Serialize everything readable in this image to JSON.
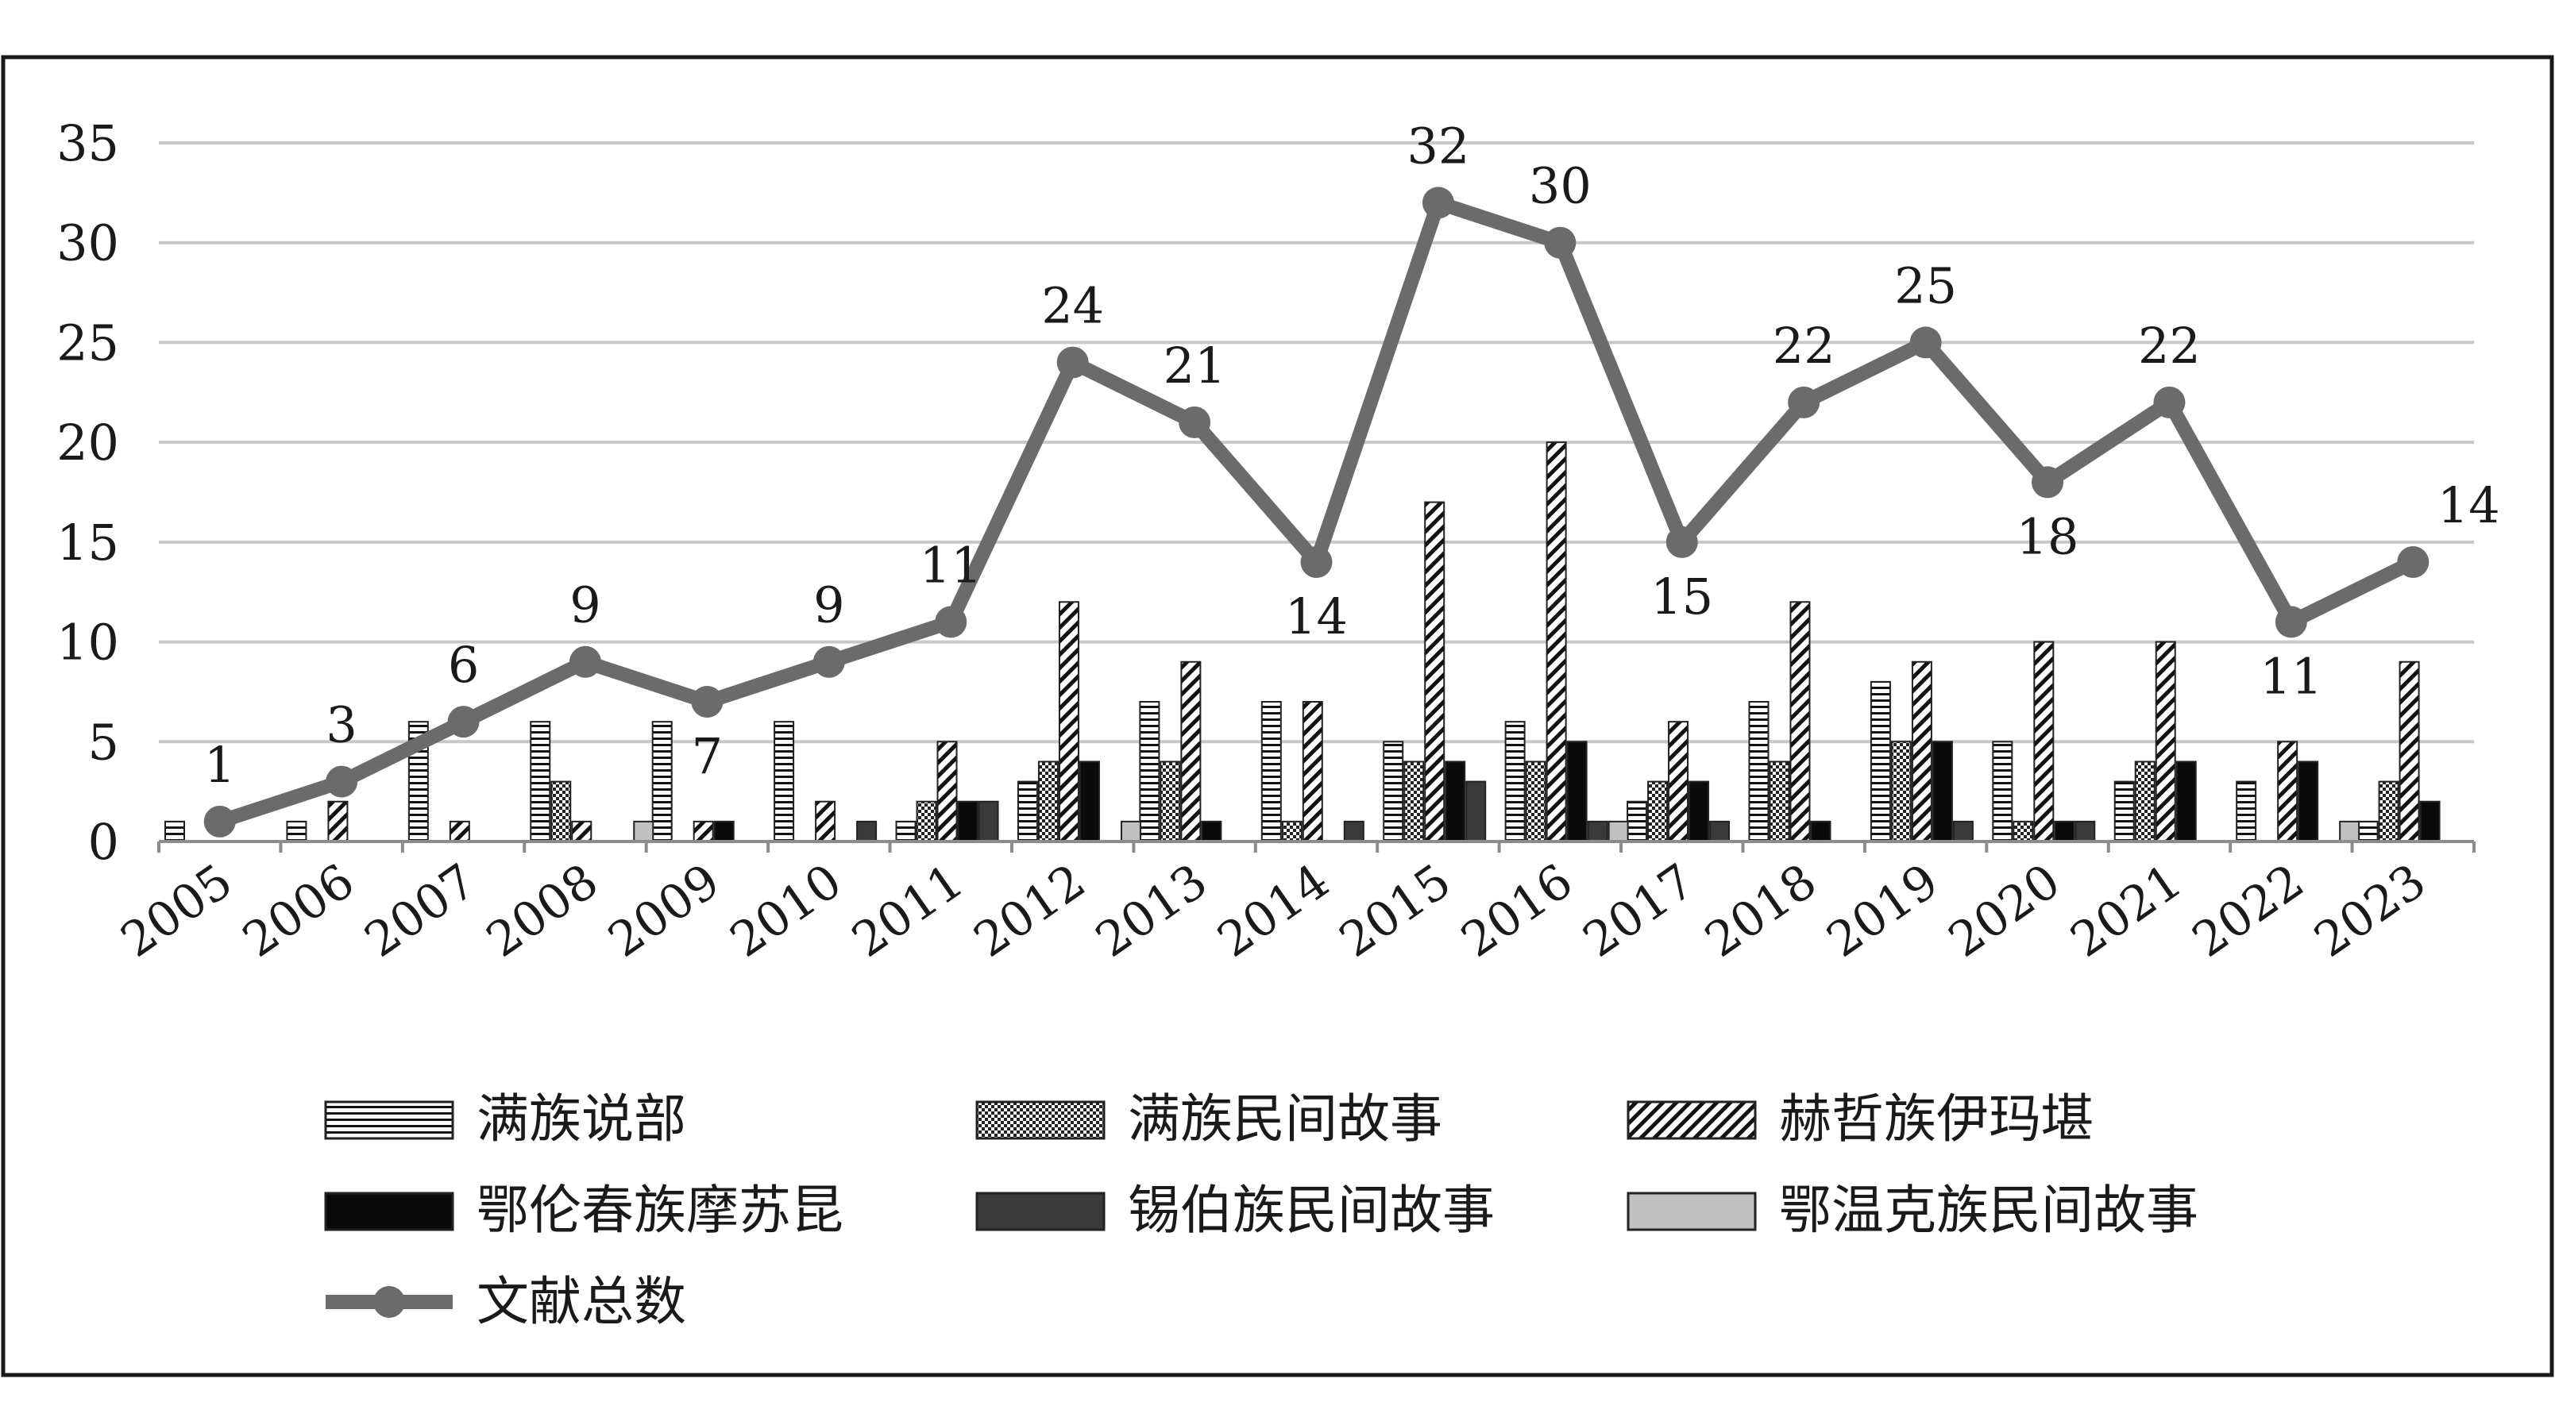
{
  "chart_data": {
    "type": "bar",
    "title": "",
    "xlabel": "",
    "ylabel": "",
    "ylim": [
      0,
      35
    ],
    "yticks": [
      0,
      5,
      10,
      15,
      20,
      25,
      30,
      35
    ],
    "grid": true,
    "legend_position": "bottom",
    "categories": [
      "2005",
      "2006",
      "2007",
      "2008",
      "2009",
      "2010",
      "2011",
      "2012",
      "2013",
      "2014",
      "2015",
      "2016",
      "2017",
      "2018",
      "2019",
      "2020",
      "2021",
      "2022",
      "2023"
    ],
    "series": [
      {
        "name": "满族说部",
        "type": "bar",
        "pattern": "horizontal-stripes",
        "values": [
          1,
          1,
          6,
          6,
          6,
          6,
          1,
          3,
          7,
          7,
          5,
          6,
          2,
          7,
          8,
          5,
          3,
          3,
          1
        ]
      },
      {
        "name": "满族民间故事",
        "type": "bar",
        "pattern": "checker",
        "values": [
          0,
          0,
          0,
          3,
          0,
          0,
          2,
          4,
          4,
          1,
          4,
          4,
          3,
          4,
          5,
          1,
          4,
          0,
          3
        ]
      },
      {
        "name": "赫哲族伊玛堪",
        "type": "bar",
        "pattern": "diagonal-stripes",
        "values": [
          0,
          2,
          1,
          1,
          1,
          2,
          5,
          12,
          9,
          7,
          17,
          20,
          6,
          12,
          9,
          10,
          10,
          5,
          9
        ]
      },
      {
        "name": "鄂伦春族摩苏昆",
        "type": "bar",
        "pattern": "black",
        "values": [
          0,
          0,
          0,
          0,
          1,
          0,
          2,
          4,
          1,
          0,
          4,
          5,
          3,
          1,
          5,
          1,
          4,
          4,
          2
        ]
      },
      {
        "name": "锡伯族民间故事",
        "type": "bar",
        "pattern": "dark-gray",
        "values": [
          0,
          0,
          0,
          0,
          0,
          1,
          2,
          0,
          0,
          1,
          3,
          1,
          1,
          0,
          1,
          1,
          0,
          0,
          0
        ]
      },
      {
        "name": "鄂温克族民间故事",
        "type": "bar",
        "pattern": "light-gray",
        "values": [
          0,
          0,
          0,
          1,
          0,
          0,
          0,
          1,
          0,
          0,
          0,
          1,
          0,
          0,
          0,
          0,
          0,
          1,
          0
        ]
      },
      {
        "name": "文献总数",
        "type": "line",
        "values": [
          1,
          3,
          6,
          9,
          7,
          9,
          11,
          24,
          21,
          14,
          32,
          30,
          15,
          22,
          25,
          18,
          22,
          11,
          14
        ]
      }
    ],
    "colors": {
      "line": "#6b6b6b",
      "black": "#0a0a0a",
      "dark_gray": "#3a3a3a",
      "light_gray": "#c0c0c0",
      "grid": "#c8c8c8",
      "axis": "#8c8c8c",
      "text": "#1a1a1a"
    }
  }
}
